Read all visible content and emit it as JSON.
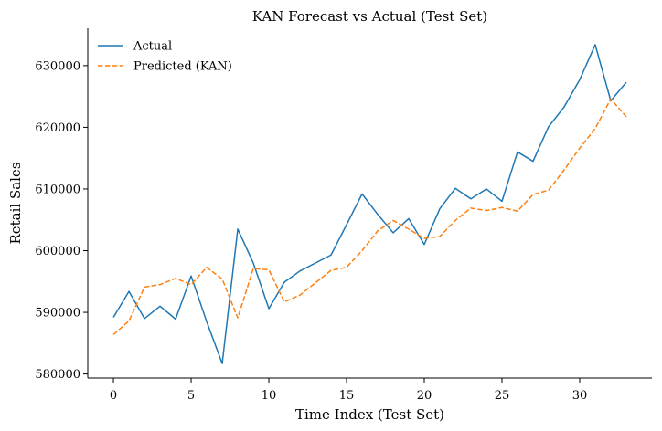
{
  "chart_data": {
    "type": "line",
    "title": "KAN Forecast vs Actual (Test Set)",
    "xlabel": "Time Index (Test Set)",
    "ylabel": "Retail Sales",
    "xlim": [
      -1.65,
      34.65
    ],
    "ylim": [
      579350,
      636050
    ],
    "xticks": [
      0,
      5,
      10,
      15,
      20,
      25,
      30
    ],
    "yticks": [
      580000,
      590000,
      600000,
      610000,
      620000,
      630000
    ],
    "legend_position": "top-left",
    "x": [
      0,
      1,
      2,
      3,
      4,
      5,
      6,
      7,
      8,
      9,
      10,
      11,
      12,
      13,
      14,
      15,
      16,
      17,
      18,
      19,
      20,
      21,
      22,
      23,
      24,
      25,
      26,
      27,
      28,
      29,
      30,
      31,
      32,
      33
    ],
    "series": [
      {
        "name": "Actual",
        "color": "#1f77b4",
        "dash": "solid",
        "values": [
          589200,
          593400,
          589000,
          591000,
          588900,
          595900,
          588500,
          581700,
          603500,
          598000,
          590600,
          594900,
          596700,
          598000,
          599300,
          604200,
          609200,
          605900,
          602900,
          605200,
          601000,
          606800,
          610100,
          608400,
          610000,
          608000,
          616000,
          614500,
          620100,
          623300,
          627700,
          633400,
          624300,
          627300
        ]
      },
      {
        "name": "Predicted (KAN)",
        "color": "#ff7f0e",
        "dash": "dashed",
        "values": [
          586400,
          588600,
          594100,
          594500,
          595500,
          594500,
          597300,
          595400,
          589100,
          597100,
          596900,
          591700,
          592800,
          594800,
          596800,
          597300,
          600000,
          603200,
          604900,
          603500,
          602000,
          602300,
          604900,
          606900,
          606500,
          607000,
          606400,
          609100,
          609800,
          613100,
          616600,
          619800,
          624600,
          621700
        ]
      }
    ]
  }
}
